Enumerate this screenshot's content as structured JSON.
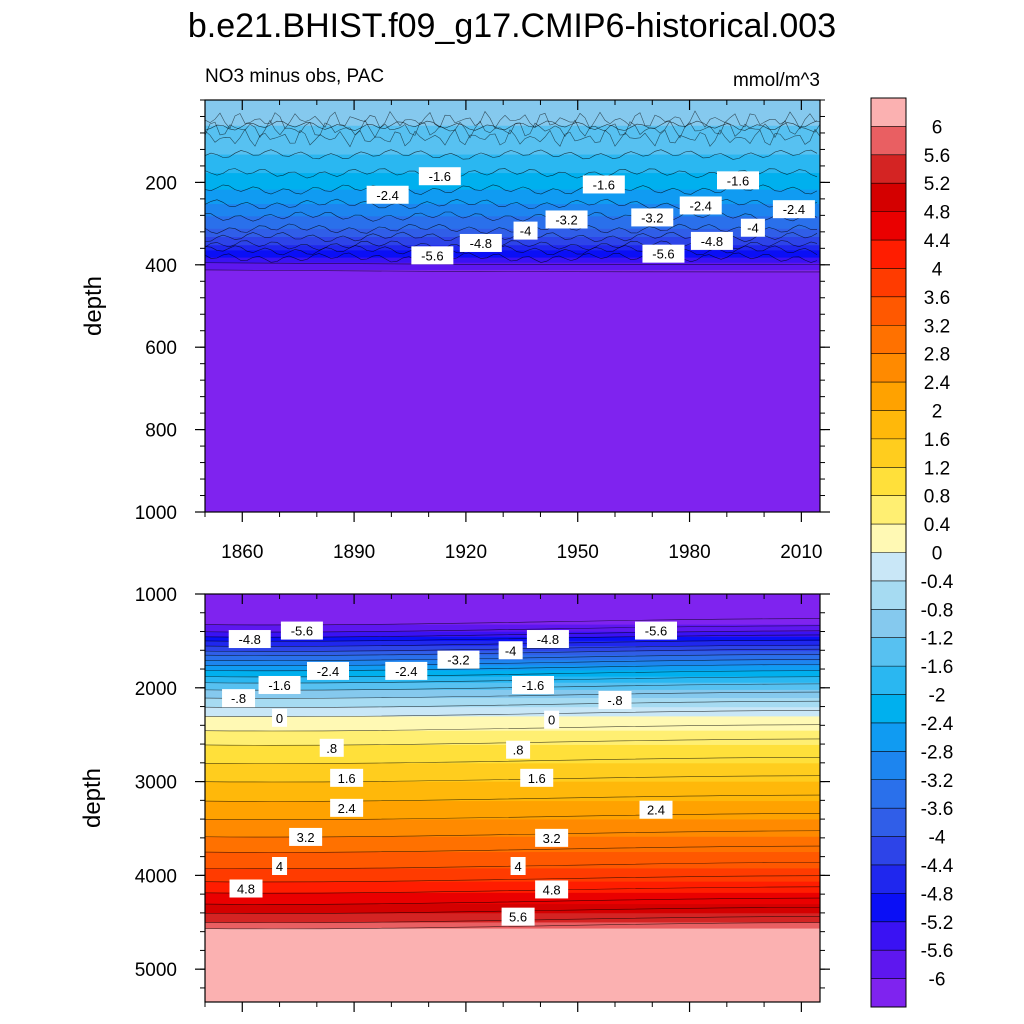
{
  "figure": {
    "title": "b.e21.BHIST.f09_g17.CMIP6-historical.003",
    "left_string": "NO3 minus obs, PAC",
    "right_string": "mmol/m^3"
  },
  "chart_data": [
    {
      "type": "heatmap",
      "name": "upper-panel",
      "title": "NO3 minus obs, PAC",
      "units": "mmol/m^3",
      "xlabel": "",
      "ylabel": "depth",
      "xlim": [
        1850,
        2015
      ],
      "ylim": [
        1000,
        0
      ],
      "xticks": [
        1860,
        1890,
        1920,
        1950,
        1980,
        2010
      ],
      "xtick_labels": [
        "1860",
        "1890",
        "1920",
        "1950",
        "1980",
        "2010"
      ],
      "yticks": [
        200,
        400,
        600,
        800,
        1000
      ],
      "ytick_labels": [
        "200",
        "400",
        "600",
        "800",
        "1000"
      ],
      "profile": {
        "depth": [
          10,
          60,
          130,
          200,
          260,
          310,
          350,
          380,
          400,
          420,
          1000
        ],
        "value": [
          -1.0,
          -1.2,
          -1.6,
          -2.2,
          -2.9,
          -3.6,
          -4.4,
          -5.2,
          -5.8,
          -6.2,
          -6.2
        ]
      },
      "contour_labels": [
        {
          "text": "-1.6",
          "x": 1913,
          "y": 185
        },
        {
          "text": "-1.6",
          "x": 1957,
          "y": 205
        },
        {
          "text": "-1.6",
          "x": 1993,
          "y": 195
        },
        {
          "text": "-2.4",
          "x": 1899,
          "y": 230
        },
        {
          "text": "-2.4",
          "x": 1983,
          "y": 256
        },
        {
          "text": "-2.4",
          "x": 2008,
          "y": 265
        },
        {
          "text": "-3.2",
          "x": 1947,
          "y": 290
        },
        {
          "text": "-3.2",
          "x": 1970,
          "y": 285
        },
        {
          "text": "-4",
          "x": 1936,
          "y": 317
        },
        {
          "text": "-4",
          "x": 1997,
          "y": 310
        },
        {
          "text": "-4.8",
          "x": 1924,
          "y": 347
        },
        {
          "text": "-4.8",
          "x": 1986,
          "y": 342
        },
        {
          "text": "-5.6",
          "x": 1911,
          "y": 377
        },
        {
          "text": "-5.6",
          "x": 1973,
          "y": 373
        }
      ]
    },
    {
      "type": "heatmap",
      "name": "lower-panel",
      "title": "",
      "units": "mmol/m^3",
      "xlabel": "",
      "ylabel": "depth",
      "xlim": [
        1850,
        2015
      ],
      "ylim": [
        5350,
        1000
      ],
      "xticks": [
        1860,
        1890,
        1920,
        1950,
        1980,
        2010
      ],
      "xtick_labels": [
        "",
        "",
        "",
        "",
        "",
        ""
      ],
      "yticks": [
        1000,
        2000,
        3000,
        4000,
        5000
      ],
      "ytick_labels": [
        "1000",
        "2000",
        "3000",
        "4000",
        "5000"
      ],
      "profile": {
        "depth": [
          1000,
          1300,
          1400,
          1500,
          1700,
          1900,
          2100,
          2300,
          2600,
          3000,
          3500,
          4000,
          4300,
          4500,
          4600,
          5350
        ],
        "value": [
          -6.2,
          -6.1,
          -5.6,
          -4.8,
          -3.2,
          -1.8,
          -0.8,
          0,
          0.8,
          1.6,
          2.6,
          3.8,
          4.8,
          5.6,
          6.3,
          6.3
        ]
      },
      "contour_labels": [
        {
          "text": "-5.6",
          "x": 1876,
          "y": 1390
        },
        {
          "text": "-5.6",
          "x": 1971,
          "y": 1390
        },
        {
          "text": "-4.8",
          "x": 1862,
          "y": 1480
        },
        {
          "text": "-4.8",
          "x": 1942,
          "y": 1480
        },
        {
          "text": "-4",
          "x": 1932,
          "y": 1600
        },
        {
          "text": "-3.2",
          "x": 1918,
          "y": 1700
        },
        {
          "text": "-2.4",
          "x": 1883,
          "y": 1820
        },
        {
          "text": "-2.4",
          "x": 1904,
          "y": 1820
        },
        {
          "text": "-1.6",
          "x": 1870,
          "y": 1970
        },
        {
          "text": "-1.6",
          "x": 1938,
          "y": 1970
        },
        {
          "text": "-.8",
          "x": 1859,
          "y": 2110
        },
        {
          "text": "-.8",
          "x": 1960,
          "y": 2130
        },
        {
          "text": "0",
          "x": 1870,
          "y": 2320
        },
        {
          "text": "0",
          "x": 1943,
          "y": 2340
        },
        {
          "text": ".8",
          "x": 1884,
          "y": 2640
        },
        {
          "text": ".8",
          "x": 1934,
          "y": 2660
        },
        {
          "text": "1.6",
          "x": 1888,
          "y": 2960
        },
        {
          "text": "1.6",
          "x": 1939,
          "y": 2960
        },
        {
          "text": "2.4",
          "x": 1888,
          "y": 3280
        },
        {
          "text": "2.4",
          "x": 1971,
          "y": 3300
        },
        {
          "text": "3.2",
          "x": 1877,
          "y": 3590
        },
        {
          "text": "3.2",
          "x": 1943,
          "y": 3600
        },
        {
          "text": "4",
          "x": 1870,
          "y": 3900
        },
        {
          "text": "4",
          "x": 1934,
          "y": 3900
        },
        {
          "text": "4.8",
          "x": 1861,
          "y": 4140
        },
        {
          "text": "4.8",
          "x": 1943,
          "y": 4150
        },
        {
          "text": "5.6",
          "x": 1934,
          "y": 4440
        }
      ]
    }
  ],
  "colorbar": {
    "labels": [
      "6",
      "5.6",
      "5.2",
      "4.8",
      "4.4",
      "4",
      "3.6",
      "3.2",
      "2.8",
      "2.4",
      "2",
      "1.6",
      "1.2",
      "0.8",
      "0.4",
      "0",
      "-0.4",
      "-0.8",
      "-1.2",
      "-1.6",
      "-2",
      "-2.4",
      "-2.8",
      "-3.2",
      "-3.6",
      "-4",
      "-4.4",
      "-4.8",
      "-5.2",
      "-5.6",
      "-6"
    ],
    "colors": [
      "#fbb1b1",
      "#e95f62",
      "#d42423",
      "#d40000",
      "#ea0000",
      "#ff1d00",
      "#ff3b00",
      "#ff5800",
      "#ff7100",
      "#ff8a00",
      "#ffa200",
      "#ffb80a",
      "#ffcd1e",
      "#ffe03a",
      "#ffef72",
      "#fff9b4",
      "#c9e7f7",
      "#a6dbf2",
      "#85c9ee",
      "#57c1f1",
      "#2ab7f1",
      "#00b0ee",
      "#109bf2",
      "#1d85ef",
      "#2a70eb",
      "#305ee8",
      "#2d44e8",
      "#1f27ee",
      "#0a0ff6",
      "#3a12f3",
      "#5e17ef",
      "#7f23ef"
    ]
  }
}
